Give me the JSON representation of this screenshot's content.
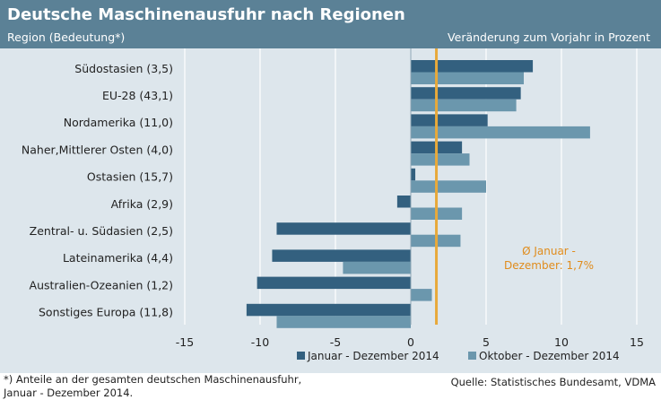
{
  "header": {
    "title": "Deutsche Maschinenausfuhr nach Regionen",
    "region_label": "Region (Bedeutung*)",
    "change_label": "Veränderung  zum Vorjahr in Prozent"
  },
  "colors": {
    "header_bg": "#5b8196",
    "plot_bg": "#dde6ec",
    "series_dark": "#33607f",
    "series_light": "#6b97ad",
    "average_line": "#e8a93a",
    "annotation_text": "#e08c1c"
  },
  "chart_data": {
    "type": "bar",
    "orientation": "horizontal",
    "categories": [
      "Südostasien  (3,5)",
      "EU-28  (43,1)",
      "Nordamerika  (11,0)",
      "Naher,Mittlerer Osten  (4,0)",
      "Ostasien  (15,7)",
      "Afrika  (2,9)",
      "Zentral- u. Südasien  (2,5)",
      "Lateinamerika  (4,4)",
      "Australien-Ozeanien  (1,2)",
      "Sonstiges Europa  (11,8)"
    ],
    "series": [
      {
        "name": "Januar - Dezember 2014",
        "values": [
          8.1,
          7.3,
          5.1,
          3.4,
          0.3,
          -0.9,
          -8.9,
          -9.2,
          -10.2,
          -10.9
        ]
      },
      {
        "name": "Oktober - Dezember 2014",
        "values": [
          7.5,
          7.0,
          11.9,
          3.9,
          5.0,
          3.4,
          3.3,
          -4.5,
          1.4,
          -8.9
        ]
      }
    ],
    "xlim": [
      -15,
      15
    ],
    "xticks": [
      -15,
      -10,
      -5,
      0,
      5,
      10,
      15
    ],
    "xtick_labels": [
      "-15",
      "-10",
      "-5",
      "0",
      "5",
      "10",
      "15"
    ],
    "grid": "vertical",
    "legend_position": "bottom-right",
    "reference_line": {
      "value": 1.7,
      "label_lines": [
        "Ø Januar -",
        "Dezember: 1,7%"
      ]
    }
  },
  "footnote": {
    "line1": "*) Anteile an der gesamten deutschen Maschinenausfuhr,",
    "line2": "Januar - Dezember 2014."
  },
  "source": "Quelle: Statistisches Bundesamt, VDMA"
}
